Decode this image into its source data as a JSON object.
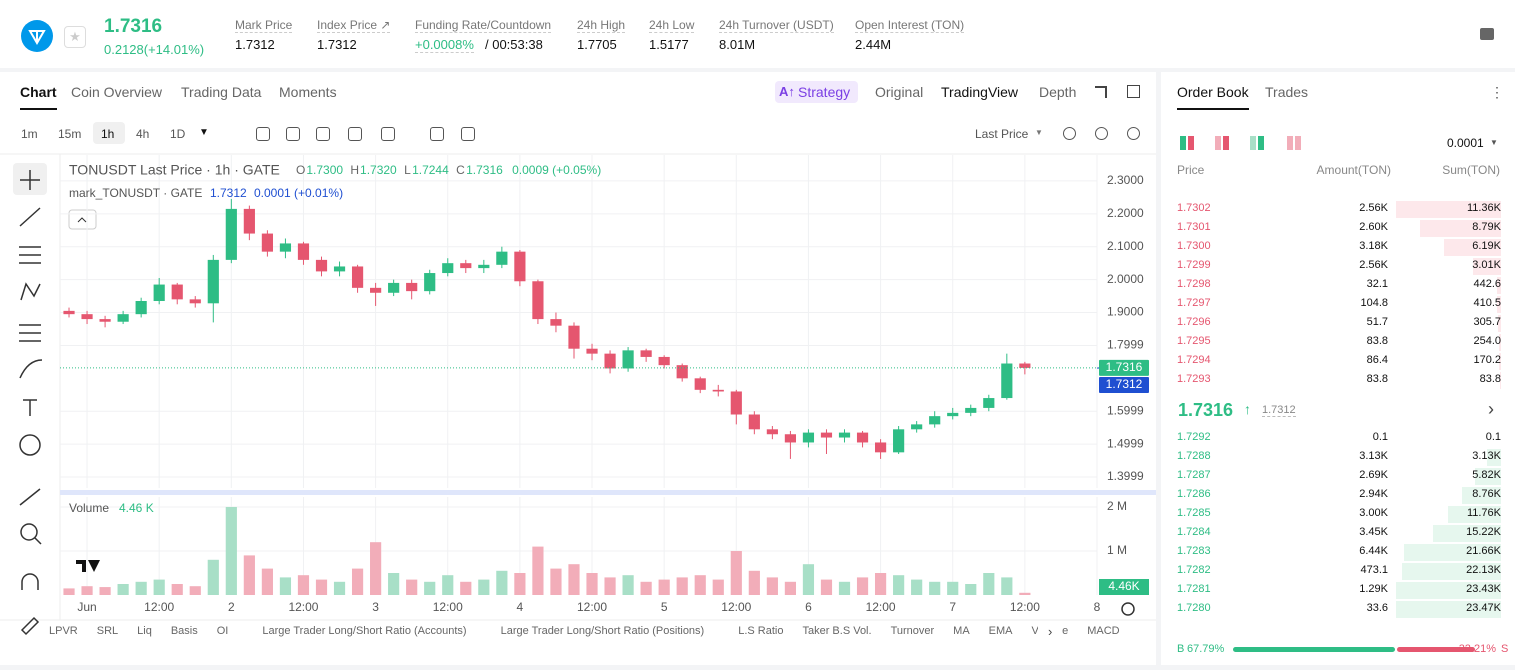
{
  "header": {
    "price": "1.7316",
    "change": "0.2128(+14.01%)",
    "stats": [
      {
        "label": "Mark Price",
        "value": "1.7312"
      },
      {
        "label": "Index Price ↗",
        "value": "1.7312"
      },
      {
        "label": "Funding Rate/Countdown",
        "value": "+0.0008%",
        "extra": "/ 00:53:38"
      },
      {
        "label": "24h High",
        "value": "1.7705"
      },
      {
        "label": "24h Low",
        "value": "1.5177"
      },
      {
        "label": "24h Turnover (USDT)",
        "value": "8.01M"
      },
      {
        "label": "Open Interest (TON)",
        "value": "2.44M"
      }
    ]
  },
  "tabs": [
    "Chart",
    "Coin Overview",
    "Trading Data",
    "Moments"
  ],
  "views": [
    "Strategy",
    "Original",
    "TradingView",
    "Depth"
  ],
  "intervals": [
    "1m",
    "15m",
    "1h",
    "4h",
    "1D"
  ],
  "price_type": "Last Price",
  "indicators": [
    "LPVR",
    "SRL",
    "Liq",
    "Basis",
    "OI",
    "Large Trader Long/Short Ratio (Accounts)",
    "Large Trader Long/Short Ratio (Positions)",
    "L.S Ratio",
    "Taker B.S Vol.",
    "Turnover",
    "MA",
    "EMA",
    "Volume",
    "MACD"
  ],
  "chart_data": {
    "type": "candlestick",
    "title": "TONUSDT Last Price · 1h · GATE",
    "ohlc": [
      {
        "key": "O",
        "value": "1.7300"
      },
      {
        "key": "H",
        "value": "1.7320"
      },
      {
        "key": "L",
        "value": "1.7244"
      },
      {
        "key": "C",
        "value": "1.7316"
      }
    ],
    "ohlc_change": "0.0009 (+0.05%)",
    "mark_label": "mark_TONUSDT · GATE",
    "mark_value": "1.7312",
    "mark_change": "0.0001 (+0.01%)",
    "volume_label": "Volume",
    "volume_value": "4.46 K",
    "volume_tag": "4.46K",
    "up_color": "#2ebd85",
    "down_color": "#e5566f",
    "up_volume_color": "#a8dfc7",
    "down_volume_color": "#f2adb9",
    "last_price": 1.7316,
    "mark_price": 1.7312,
    "xlim": [
      -4.5,
      168
    ],
    "xticks": [
      {
        "value": 0,
        "label": "Jun"
      },
      {
        "value": 12,
        "label": "12:00"
      },
      {
        "value": 24,
        "label": "2"
      },
      {
        "value": 36,
        "label": "12:00"
      },
      {
        "value": 48,
        "label": "3"
      },
      {
        "value": 60,
        "label": "12:00"
      },
      {
        "value": 72,
        "label": "4"
      },
      {
        "value": 84,
        "label": "12:00"
      },
      {
        "value": 96,
        "label": "5"
      },
      {
        "value": 108,
        "label": "12:00"
      },
      {
        "value": 120,
        "label": "6"
      },
      {
        "value": 132,
        "label": "12:00"
      },
      {
        "value": 144,
        "label": "7"
      },
      {
        "value": 156,
        "label": "12:00"
      },
      {
        "value": 168,
        "label": "8"
      }
    ],
    "ylim": [
      1.3666,
      2.3788
    ],
    "yticks": [
      {
        "value": 2.3,
        "label": "2.3000"
      },
      {
        "value": 2.2,
        "label": "2.2000"
      },
      {
        "value": 2.1,
        "label": "2.1000"
      },
      {
        "value": 2.0,
        "label": "2.0000"
      },
      {
        "value": 1.9,
        "label": "1.9000"
      },
      1.7999,
      1.5999,
      1.4999,
      1.3999
    ],
    "volume_ylim": [
      0,
      2227000
    ],
    "volume_ticks": [
      {
        "value": 2000000,
        "label": "2 M"
      },
      {
        "value": 1000000,
        "label": "1 M"
      }
    ],
    "grid": true,
    "x": [
      -3,
      0,
      3,
      6,
      9,
      12,
      15,
      18,
      21,
      24,
      27,
      30,
      33,
      36,
      39,
      42,
      45,
      48,
      51,
      54,
      57,
      60,
      63,
      66,
      69,
      72,
      75,
      78,
      81,
      84,
      87,
      90,
      93,
      96,
      99,
      102,
      105,
      108,
      111,
      114,
      117,
      120,
      123,
      126,
      129,
      132,
      135,
      138,
      141,
      144,
      147,
      150,
      153,
      156
    ],
    "open": [
      1.905,
      1.895,
      1.88,
      1.872,
      1.895,
      1.935,
      1.985,
      1.94,
      1.928,
      2.06,
      2.215,
      2.14,
      2.085,
      2.11,
      2.06,
      2.025,
      2.04,
      1.975,
      1.96,
      1.99,
      1.965,
      2.02,
      2.05,
      2.035,
      2.045,
      2.085,
      1.995,
      1.88,
      1.86,
      1.79,
      1.775,
      1.73,
      1.785,
      1.765,
      1.74,
      1.7,
      1.665,
      1.66,
      1.59,
      1.545,
      1.53,
      1.505,
      1.535,
      1.52,
      1.535,
      1.505,
      1.475,
      1.545,
      1.56,
      1.585,
      1.595,
      1.61,
      1.64,
      1.745
    ],
    "high": [
      1.915,
      1.905,
      1.89,
      1.905,
      1.945,
      2.005,
      1.99,
      1.95,
      2.075,
      2.245,
      2.225,
      2.15,
      2.125,
      2.115,
      2.07,
      2.055,
      2.045,
      1.99,
      2.0,
      2.0,
      2.03,
      2.065,
      2.06,
      2.06,
      2.1,
      2.09,
      2.0,
      1.9,
      1.87,
      1.805,
      1.785,
      1.795,
      1.79,
      1.77,
      1.745,
      1.705,
      1.68,
      1.665,
      1.6,
      1.555,
      1.54,
      1.545,
      1.545,
      1.545,
      1.54,
      1.515,
      1.555,
      1.57,
      1.6,
      1.61,
      1.62,
      1.65,
      1.775,
      1.75
    ],
    "low": [
      1.885,
      1.865,
      1.855,
      1.865,
      1.885,
      1.925,
      1.925,
      1.915,
      1.87,
      2.05,
      2.12,
      2.07,
      2.065,
      2.045,
      2.01,
      2.01,
      1.96,
      1.92,
      1.95,
      1.94,
      1.955,
      2.01,
      2.02,
      2.02,
      2.035,
      1.98,
      1.865,
      1.84,
      1.76,
      1.755,
      1.715,
      1.72,
      1.75,
      1.73,
      1.69,
      1.655,
      1.645,
      1.56,
      1.53,
      1.515,
      1.455,
      1.49,
      1.47,
      1.505,
      1.49,
      1.455,
      1.47,
      1.535,
      1.55,
      1.575,
      1.585,
      1.6,
      1.635,
      1.712
    ],
    "close": [
      1.895,
      1.88,
      1.872,
      1.895,
      1.935,
      1.985,
      1.94,
      1.928,
      2.06,
      2.215,
      2.14,
      2.085,
      2.11,
      2.06,
      2.025,
      2.04,
      1.975,
      1.96,
      1.99,
      1.965,
      2.02,
      2.05,
      2.035,
      2.045,
      2.085,
      1.995,
      1.88,
      1.86,
      1.79,
      1.775,
      1.73,
      1.785,
      1.765,
      1.74,
      1.7,
      1.665,
      1.66,
      1.59,
      1.545,
      1.53,
      1.505,
      1.535,
      1.52,
      1.535,
      1.505,
      1.475,
      1.545,
      1.56,
      1.585,
      1.595,
      1.61,
      1.64,
      1.745,
      1.7316
    ],
    "volume": [
      150000,
      200000,
      180000,
      250000,
      300000,
      350000,
      250000,
      200000,
      800000,
      2000000,
      900000,
      600000,
      400000,
      450000,
      350000,
      300000,
      600000,
      1200000,
      500000,
      350000,
      300000,
      450000,
      300000,
      350000,
      550000,
      500000,
      1100000,
      600000,
      700000,
      500000,
      400000,
      450000,
      300000,
      350000,
      400000,
      450000,
      350000,
      1000000,
      550000,
      400000,
      300000,
      700000,
      350000,
      300000,
      400000,
      500000,
      450000,
      350000,
      300000,
      300000,
      250000,
      500000,
      400000,
      50000
    ]
  },
  "order_book": {
    "tabs": [
      "Order Book",
      "Trades"
    ],
    "tick": "0.0001",
    "columns": [
      "Price",
      "Amount(TON)",
      "Sum(TON)"
    ],
    "asks": [
      {
        "price": "1.7302",
        "amount": "2.56K",
        "sum": {
          "value": 11360,
          "label": "11.36K"
        }
      },
      {
        "price": "1.7301",
        "amount": "2.60K",
        "sum": {
          "value": 8790,
          "label": "8.79K"
        }
      },
      {
        "price": "1.7300",
        "amount": "3.18K",
        "sum": {
          "value": 6190,
          "label": "6.19K"
        }
      },
      {
        "price": "1.7299",
        "amount": "2.56K",
        "sum": {
          "value": 3010,
          "label": "3.01K"
        }
      },
      {
        "price": "1.7298",
        "amount": "32.1",
        "sum": 442.6
      },
      {
        "price": "1.7297",
        "amount": "104.8",
        "sum": 410.5
      },
      {
        "price": "1.7296",
        "amount": "51.7",
        "sum": 305.7
      },
      {
        "price": "1.7295",
        "amount": "83.8",
        "sum": {
          "value": 254,
          "label": "254.0"
        }
      },
      {
        "price": "1.7294",
        "amount": "86.4",
        "sum": 170.2
      },
      {
        "price": "1.7293",
        "amount": "83.8",
        "sum": 83.8
      }
    ],
    "last": "1.7316",
    "mark": "1.7312",
    "bids": [
      {
        "price": "1.7292",
        "amount": "0.1",
        "sum": 0.1
      },
      {
        "price": "1.7288",
        "amount": "3.13K",
        "sum": {
          "value": 3130,
          "label": "3.13K"
        }
      },
      {
        "price": "1.7287",
        "amount": "2.69K",
        "sum": {
          "value": 5820,
          "label": "5.82K"
        }
      },
      {
        "price": "1.7286",
        "amount": "2.94K",
        "sum": {
          "value": 8760,
          "label": "8.76K"
        }
      },
      {
        "price": "1.7285",
        "amount": "3.00K",
        "sum": {
          "value": 11760,
          "label": "11.76K"
        }
      },
      {
        "price": "1.7284",
        "amount": "3.45K",
        "sum": {
          "value": 15220,
          "label": "15.22K"
        }
      },
      {
        "price": "1.7283",
        "amount": "6.44K",
        "sum": {
          "value": 21660,
          "label": "21.66K"
        }
      },
      {
        "price": "1.7282",
        "amount": "473.1",
        "sum": {
          "value": 22130,
          "label": "22.13K"
        }
      },
      {
        "price": "1.7281",
        "amount": "1.29K",
        "sum": {
          "value": 23430,
          "label": "23.43K"
        }
      },
      {
        "price": "1.7280",
        "amount": "33.6",
        "sum": {
          "value": 23470,
          "label": "23.47K"
        }
      }
    ],
    "buy_label": "B",
    "buy": {
      "value": 67.79,
      "label": "67.79%"
    },
    "sell_label": "S",
    "sell": {
      "value": 32.21,
      "label": "32.21%"
    }
  }
}
